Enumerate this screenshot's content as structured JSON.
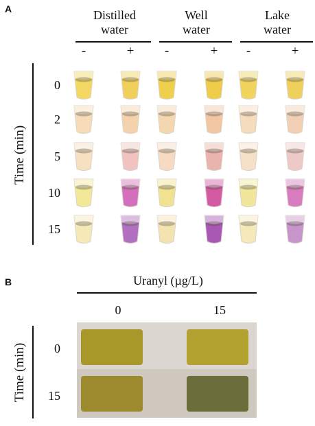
{
  "panel_a": {
    "letter": "A",
    "columns": [
      {
        "line1": "Distilled",
        "line2": "water"
      },
      {
        "line1": "Well",
        "line2": "water"
      },
      {
        "line1": "Lake",
        "line2": "water"
      }
    ],
    "minus": "-",
    "plus": "+",
    "y_label": "Time (min)",
    "times": [
      "0",
      "2",
      "5",
      "10",
      "15"
    ],
    "tube_colors": [
      [
        "#f2d763",
        "#f0d05a",
        "#f0cf4c",
        "#efcc4a",
        "#f0d45e",
        "#efd05c"
      ],
      [
        "#f6dcb8",
        "#f4d2ae",
        "#f4d6b0",
        "#f2c8a4",
        "#f5dcbc",
        "#f1d0b6"
      ],
      [
        "#f7e0c2",
        "#f0c3c0",
        "#f6dbc2",
        "#eab4ae",
        "#f5e1c8",
        "#efc9c8"
      ],
      [
        "#f3e898",
        "#d46fbd",
        "#f0e290",
        "#d45aa4",
        "#f2e69c",
        "#d87cbf"
      ],
      [
        "#f6e9b8",
        "#b170c1",
        "#f3e3b0",
        "#a857b3",
        "#f5e8ba",
        "#c794cb"
      ]
    ]
  },
  "panel_b": {
    "letter": "B",
    "title": "Uranyl (µg/L)",
    "columns": [
      "0",
      "15"
    ],
    "y_label": "Time (min)",
    "times": [
      "0",
      "15"
    ],
    "strip_colors": [
      [
        "#a8982a",
        "#b3a22f"
      ],
      [
        "#9c8a2e",
        "#6b6d3a"
      ]
    ]
  }
}
